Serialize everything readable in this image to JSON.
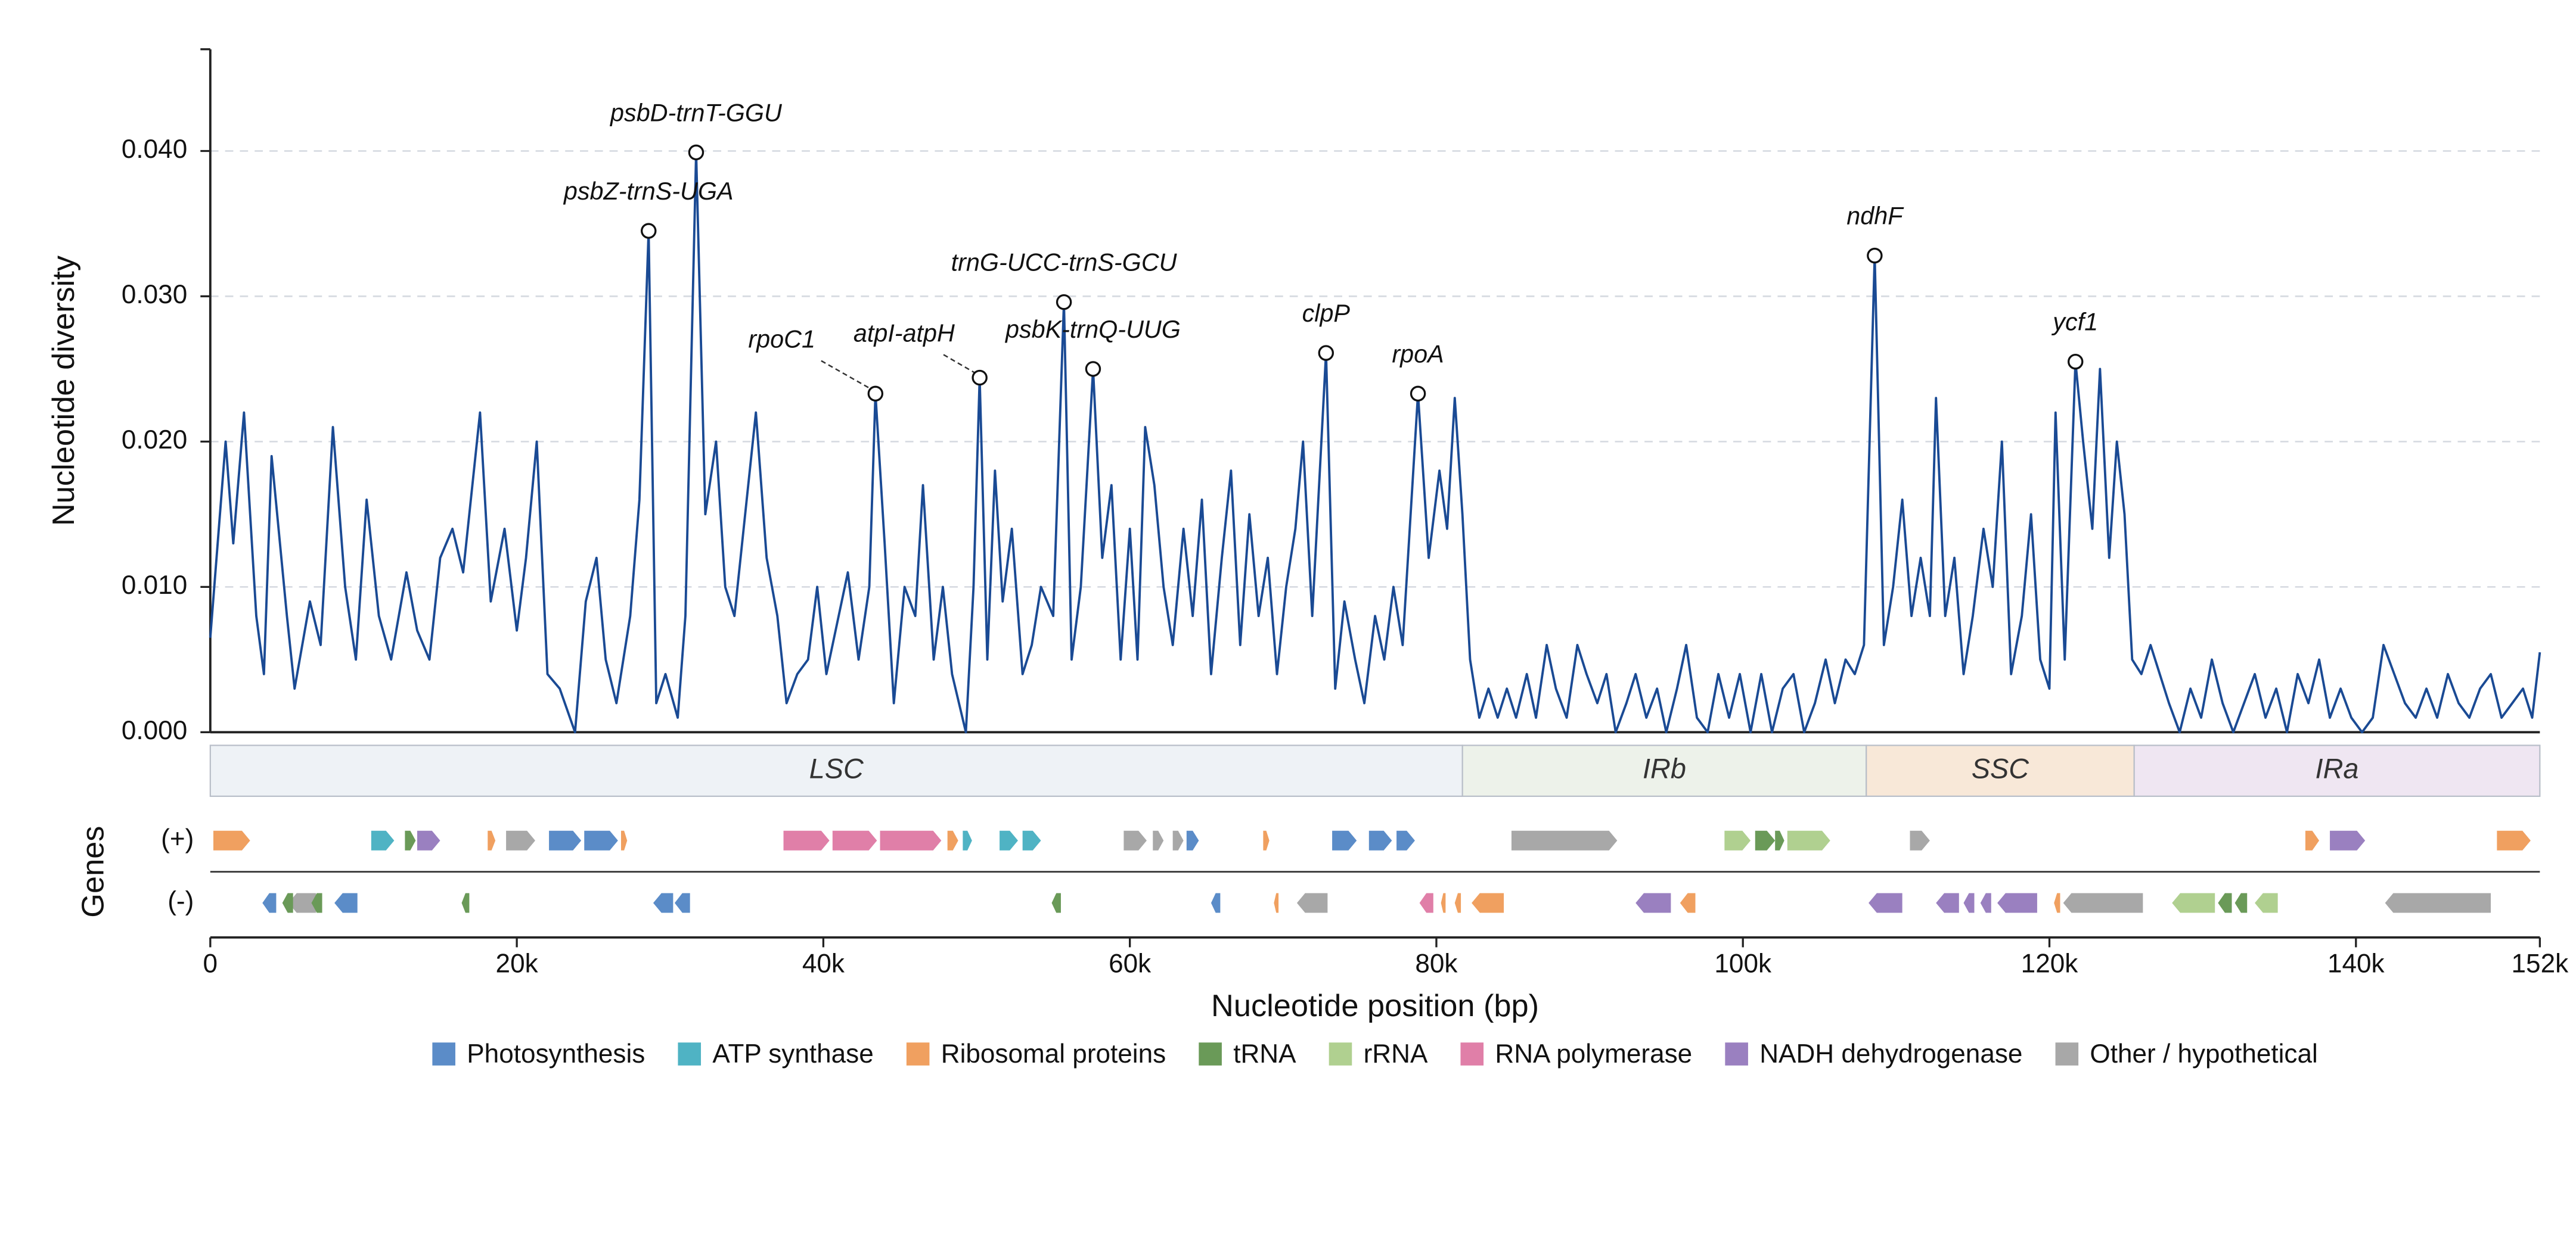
{
  "chart_data": {
    "type": "line",
    "y_label": "Nucleotide diversity",
    "x_label": "Nucleotide position (bp)",
    "color": "#1a4a94",
    "grid": true,
    "xlim": [
      0,
      152000
    ],
    "ylim": [
      0,
      0.047
    ],
    "xticks": [
      0,
      {
        "value": 20000,
        "label": "20k"
      },
      {
        "value": 40000,
        "label": "40k"
      },
      {
        "value": 60000,
        "label": "60k"
      },
      {
        "value": 80000,
        "label": "80k"
      },
      {
        "value": 100000,
        "label": "100k"
      },
      {
        "value": 120000,
        "label": "120k"
      },
      {
        "value": 140000,
        "label": "140k"
      },
      {
        "value": 152000,
        "label": "152k"
      }
    ],
    "yticks": [
      {
        "value": 0,
        "label": "0.000"
      },
      {
        "value": 0.01,
        "label": "0.010"
      },
      {
        "value": 0.02,
        "label": "0.020"
      },
      {
        "value": 0.03,
        "label": "0.030"
      },
      {
        "value": 0.04,
        "label": "0.040"
      }
    ],
    "x": [
      0,
      1000,
      1500,
      2200,
      3000,
      3500,
      4000,
      5000,
      5500,
      6500,
      7200,
      8000,
      8800,
      9500,
      10200,
      11000,
      11800,
      12800,
      13500,
      14300,
      15000,
      15800,
      16500,
      17600,
      18300,
      19200,
      20000,
      20600,
      21300,
      22000,
      22800,
      23800,
      24500,
      25200,
      25800,
      26500,
      27400,
      28000,
      28600,
      29100,
      29700,
      30500,
      31000,
      31700,
      32300,
      33000,
      33600,
      34200,
      35000,
      35600,
      36300,
      37000,
      37600,
      38300,
      39000,
      39600,
      40200,
      41000,
      41600,
      42300,
      43000,
      43400,
      44000,
      44600,
      45300,
      46000,
      46500,
      47200,
      47800,
      48400,
      49300,
      49800,
      50200,
      50700,
      51200,
      51700,
      52300,
      53000,
      53600,
      54200,
      55000,
      55700,
      56200,
      56800,
      57600,
      58200,
      58800,
      59400,
      60000,
      60500,
      61000,
      61600,
      62200,
      62800,
      63500,
      64100,
      64700,
      65300,
      66000,
      66600,
      67200,
      67800,
      68400,
      69000,
      69600,
      70200,
      70800,
      71300,
      71900,
      72800,
      73400,
      74000,
      74700,
      75300,
      76000,
      76600,
      77200,
      77800,
      78800,
      79500,
      80200,
      80700,
      81200,
      81700,
      82200,
      82800,
      83400,
      84000,
      84600,
      85200,
      85900,
      86500,
      87200,
      87800,
      88500,
      89200,
      89800,
      90500,
      91100,
      91700,
      92400,
      93000,
      93700,
      94400,
      95000,
      95700,
      96300,
      97000,
      97700,
      98400,
      99100,
      99800,
      100500,
      101200,
      101900,
      102600,
      103300,
      104000,
      104700,
      105400,
      106000,
      106700,
      107300,
      107900,
      108600,
      109200,
      109800,
      110400,
      111000,
      111600,
      112200,
      112600,
      113200,
      113800,
      114400,
      115000,
      115700,
      116300,
      116900,
      117500,
      118200,
      118800,
      119400,
      120000,
      120400,
      121000,
      121700,
      122200,
      122800,
      123300,
      123900,
      124400,
      124900,
      125400,
      126000,
      126600,
      127200,
      127800,
      128500,
      129200,
      129900,
      130600,
      131300,
      132000,
      132700,
      133400,
      134100,
      134800,
      135500,
      136200,
      136900,
      137600,
      138300,
      139000,
      139700,
      140400,
      141100,
      141800,
      142500,
      143200,
      143900,
      144600,
      145300,
      146000,
      146700,
      147400,
      148100,
      148800,
      149500,
      150200,
      150900,
      151500,
      152000
    ],
    "values": [
      0.0065,
      0.02,
      0.013,
      0.022,
      0.008,
      0.004,
      0.019,
      0.008,
      0.003,
      0.009,
      0.006,
      0.021,
      0.01,
      0.005,
      0.016,
      0.008,
      0.005,
      0.011,
      0.007,
      0.005,
      0.012,
      0.014,
      0.011,
      0.022,
      0.009,
      0.014,
      0.007,
      0.012,
      0.02,
      0.004,
      0.003,
      0.0,
      0.009,
      0.012,
      0.005,
      0.002,
      0.008,
      0.016,
      0.0345,
      0.002,
      0.004,
      0.001,
      0.008,
      0.0399,
      0.015,
      0.02,
      0.01,
      0.008,
      0.016,
      0.022,
      0.012,
      0.008,
      0.002,
      0.004,
      0.005,
      0.01,
      0.004,
      0.008,
      0.011,
      0.005,
      0.01,
      0.0233,
      0.013,
      0.002,
      0.01,
      0.008,
      0.017,
      0.005,
      0.01,
      0.004,
      0.0,
      0.01,
      0.0244,
      0.005,
      0.018,
      0.009,
      0.014,
      0.004,
      0.006,
      0.01,
      0.008,
      0.0296,
      0.005,
      0.01,
      0.025,
      0.012,
      0.017,
      0.005,
      0.014,
      0.005,
      0.021,
      0.017,
      0.01,
      0.006,
      0.014,
      0.008,
      0.016,
      0.004,
      0.012,
      0.018,
      0.006,
      0.015,
      0.008,
      0.012,
      0.004,
      0.01,
      0.014,
      0.02,
      0.008,
      0.0261,
      0.003,
      0.009,
      0.005,
      0.002,
      0.008,
      0.005,
      0.01,
      0.006,
      0.0233,
      0.012,
      0.018,
      0.014,
      0.023,
      0.015,
      0.005,
      0.001,
      0.003,
      0.001,
      0.003,
      0.001,
      0.004,
      0.001,
      0.006,
      0.003,
      0.001,
      0.006,
      0.004,
      0.002,
      0.004,
      0.0,
      0.002,
      0.004,
      0.001,
      0.003,
      0.0,
      0.003,
      0.006,
      0.001,
      0.0,
      0.004,
      0.001,
      0.004,
      0.0,
      0.004,
      0.0,
      0.003,
      0.004,
      0.0,
      0.002,
      0.005,
      0.002,
      0.005,
      0.004,
      0.006,
      0.0328,
      0.006,
      0.01,
      0.016,
      0.008,
      0.012,
      0.008,
      0.023,
      0.008,
      0.012,
      0.004,
      0.008,
      0.014,
      0.01,
      0.02,
      0.004,
      0.008,
      0.015,
      0.005,
      0.003,
      0.022,
      0.005,
      0.0255,
      0.02,
      0.014,
      0.025,
      0.012,
      0.02,
      0.015,
      0.005,
      0.004,
      0.006,
      0.004,
      0.002,
      0.0,
      0.003,
      0.001,
      0.005,
      0.002,
      0.0,
      0.002,
      0.004,
      0.001,
      0.003,
      0.0,
      0.004,
      0.002,
      0.005,
      0.001,
      0.003,
      0.001,
      0.0,
      0.001,
      0.006,
      0.004,
      0.002,
      0.001,
      0.003,
      0.001,
      0.004,
      0.002,
      0.001,
      0.003,
      0.004,
      0.001,
      0.002,
      0.003,
      0.001,
      0.0055
    ],
    "annotations": [
      {
        "label": "psbZ-trnS-UGA",
        "x": 28600,
        "y": 0.0345
      },
      {
        "label": "psbD-trnT-GGU",
        "x": 31700,
        "y": 0.0399
      },
      {
        "label": "rpoC1",
        "x": 43400,
        "y": 0.0233
      },
      {
        "label": "atpI-atpH",
        "x": 50200,
        "y": 0.0244
      },
      {
        "label": "trnG-UCC-trnS-GCU",
        "x": 55700,
        "y": 0.0296
      },
      {
        "label": "psbK-trnQ-UUG",
        "x": 57600,
        "y": 0.025
      },
      {
        "label": "clpP",
        "x": 72800,
        "y": 0.0261
      },
      {
        "label": "rpoA",
        "x": 78800,
        "y": 0.0233
      },
      {
        "label": "ndhF",
        "x": 108600,
        "y": 0.0328
      },
      {
        "label": "ycf1",
        "x": 121700,
        "y": 0.0255
      }
    ],
    "regions": [
      {
        "name": "LSC",
        "start": 0,
        "end": 81700,
        "color": "#eef2f6"
      },
      {
        "name": "IRb",
        "start": 81700,
        "end": 108050,
        "color": "#edf2ea"
      },
      {
        "name": "SSC",
        "start": 108050,
        "end": 125530,
        "color": "#f8e8d8"
      },
      {
        "name": "IRa",
        "start": 125530,
        "end": 152000,
        "color": "#efe6f2"
      }
    ],
    "genes": {
      "label": "Genes",
      "tracks": [
        "(+)",
        "(-)"
      ],
      "items": [
        {
          "start": 200,
          "end": 2600,
          "track": 0,
          "category": 2
        },
        {
          "start": 10500,
          "end": 12000,
          "track": 0,
          "category": 1
        },
        {
          "start": 12700,
          "end": 13400,
          "track": 0,
          "category": 3
        },
        {
          "start": 13500,
          "end": 15000,
          "track": 0,
          "category": 6
        },
        {
          "start": 18100,
          "end": 18600,
          "track": 0,
          "category": 2
        },
        {
          "start": 19300,
          "end": 21200,
          "track": 0,
          "category": 7
        },
        {
          "start": 22100,
          "end": 24200,
          "track": 0,
          "category": 0
        },
        {
          "start": 24400,
          "end": 26600,
          "track": 0,
          "category": 0
        },
        {
          "start": 26800,
          "end": 27200,
          "track": 0,
          "category": 2
        },
        {
          "start": 37400,
          "end": 40400,
          "track": 0,
          "category": 5
        },
        {
          "start": 40600,
          "end": 43500,
          "track": 0,
          "category": 5
        },
        {
          "start": 43700,
          "end": 47700,
          "track": 0,
          "category": 5
        },
        {
          "start": 48100,
          "end": 48800,
          "track": 0,
          "category": 2
        },
        {
          "start": 49100,
          "end": 49700,
          "track": 0,
          "category": 1
        },
        {
          "start": 51500,
          "end": 52700,
          "track": 0,
          "category": 1
        },
        {
          "start": 53000,
          "end": 54200,
          "track": 0,
          "category": 1
        },
        {
          "start": 59600,
          "end": 61100,
          "track": 0,
          "category": 7
        },
        {
          "start": 61500,
          "end": 62200,
          "track": 0,
          "category": 7
        },
        {
          "start": 62800,
          "end": 63500,
          "track": 0,
          "category": 7
        },
        {
          "start": 63700,
          "end": 64500,
          "track": 0,
          "category": 0
        },
        {
          "start": 68700,
          "end": 69100,
          "track": 0,
          "category": 2
        },
        {
          "start": 73200,
          "end": 74800,
          "track": 0,
          "category": 0
        },
        {
          "start": 75600,
          "end": 77100,
          "track": 0,
          "category": 0
        },
        {
          "start": 77400,
          "end": 78600,
          "track": 0,
          "category": 0
        },
        {
          "start": 84900,
          "end": 91800,
          "track": 0,
          "category": 7
        },
        {
          "start": 98800,
          "end": 100500,
          "track": 0,
          "category": 4
        },
        {
          "start": 100800,
          "end": 102100,
          "track": 0,
          "category": 3
        },
        {
          "start": 102100,
          "end": 102700,
          "track": 0,
          "category": 3
        },
        {
          "start": 102900,
          "end": 105700,
          "track": 0,
          "category": 4
        },
        {
          "start": 110900,
          "end": 112200,
          "track": 0,
          "category": 7
        },
        {
          "start": 136700,
          "end": 137600,
          "track": 0,
          "category": 2
        },
        {
          "start": 138300,
          "end": 140600,
          "track": 0,
          "category": 6
        },
        {
          "start": 149200,
          "end": 151400,
          "track": 0,
          "category": 2
        },
        {
          "start": 3400,
          "end": 4300,
          "track": 1,
          "category": 0
        },
        {
          "start": 5100,
          "end": 6900,
          "track": 1,
          "category": 7
        },
        {
          "start": 4700,
          "end": 5400,
          "track": 1,
          "category": 3
        },
        {
          "start": 6600,
          "end": 7300,
          "track": 1,
          "category": 3
        },
        {
          "start": 8100,
          "end": 9600,
          "track": 1,
          "category": 0
        },
        {
          "start": 16400,
          "end": 16900,
          "track": 1,
          "category": 3
        },
        {
          "start": 28900,
          "end": 30200,
          "track": 1,
          "category": 0
        },
        {
          "start": 30300,
          "end": 31300,
          "track": 1,
          "category": 0
        },
        {
          "start": 54900,
          "end": 55500,
          "track": 1,
          "category": 3
        },
        {
          "start": 65300,
          "end": 65900,
          "track": 1,
          "category": 0
        },
        {
          "start": 69400,
          "end": 69700,
          "track": 1,
          "category": 2
        },
        {
          "start": 70900,
          "end": 72900,
          "track": 1,
          "category": 7
        },
        {
          "start": 78900,
          "end": 79800,
          "track": 1,
          "category": 5
        },
        {
          "start": 80300,
          "end": 80600,
          "track": 1,
          "category": 2
        },
        {
          "start": 81200,
          "end": 81600,
          "track": 1,
          "category": 2
        },
        {
          "start": 82300,
          "end": 84400,
          "track": 1,
          "category": 2
        },
        {
          "start": 93000,
          "end": 95300,
          "track": 1,
          "category": 6
        },
        {
          "start": 95900,
          "end": 96900,
          "track": 1,
          "category": 2
        },
        {
          "start": 108200,
          "end": 110400,
          "track": 1,
          "category": 6
        },
        {
          "start": 112600,
          "end": 114100,
          "track": 1,
          "category": 6
        },
        {
          "start": 114400,
          "end": 115100,
          "track": 1,
          "category": 6
        },
        {
          "start": 115500,
          "end": 116200,
          "track": 1,
          "category": 6
        },
        {
          "start": 116600,
          "end": 119200,
          "track": 1,
          "category": 6
        },
        {
          "start": 120300,
          "end": 120700,
          "track": 1,
          "category": 2
        },
        {
          "start": 120900,
          "end": 126100,
          "track": 1,
          "category": 7
        },
        {
          "start": 128000,
          "end": 130800,
          "track": 1,
          "category": 4
        },
        {
          "start": 131000,
          "end": 131900,
          "track": 1,
          "category": 3
        },
        {
          "start": 132100,
          "end": 132900,
          "track": 1,
          "category": 3
        },
        {
          "start": 133400,
          "end": 134900,
          "track": 1,
          "category": 4
        },
        {
          "start": 141900,
          "end": 148800,
          "track": 1,
          "category": 7
        }
      ]
    },
    "legend": [
      {
        "name": "Photosynthesis",
        "color": "#5b8cc8"
      },
      {
        "name": "ATP synthase",
        "color": "#4fb3c4"
      },
      {
        "name": "Ribosomal proteins",
        "color": "#f0a060"
      },
      {
        "name": "tRNA",
        "color": "#6a9a58"
      },
      {
        "name": "rRNA",
        "color": "#b0d090"
      },
      {
        "name": "RNA polymerase",
        "color": "#e07fa8"
      },
      {
        "name": "NADH dehydrogenase",
        "color": "#9a80c0"
      },
      {
        "name": "Other / hypothetical",
        "color": "#a8a8a8"
      }
    ]
  }
}
